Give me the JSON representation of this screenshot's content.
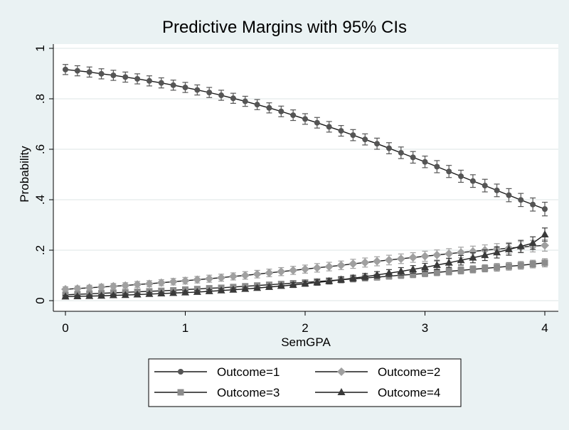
{
  "chart_data": {
    "type": "line",
    "title": "Predictive Margins with 95% CIs",
    "xlabel": "SemGPA",
    "ylabel": "Probability",
    "xlim": [
      0,
      4
    ],
    "ylim": [
      0,
      1
    ],
    "x_ticks": [
      0,
      1,
      2,
      3,
      4
    ],
    "x_tick_labels": [
      "0",
      "1",
      "2",
      "3",
      "4"
    ],
    "y_ticks": [
      0,
      0.2,
      0.4,
      0.6,
      0.8,
      1
    ],
    "y_tick_labels": [
      "0",
      ".2",
      ".4",
      ".6",
      ".8",
      "1"
    ],
    "grid": "horizontal",
    "legend_position": "bottom",
    "x_start": 0,
    "x_step": 0.1,
    "series": [
      {
        "name": "Outcome=1",
        "marker": "circle",
        "color": "#555555",
        "values": [
          0.916,
          0.911,
          0.906,
          0.899,
          0.893,
          0.886,
          0.879,
          0.871,
          0.863,
          0.854,
          0.845,
          0.835,
          0.825,
          0.814,
          0.802,
          0.79,
          0.777,
          0.764,
          0.75,
          0.735,
          0.72,
          0.705,
          0.689,
          0.673,
          0.656,
          0.639,
          0.622,
          0.604,
          0.586,
          0.568,
          0.55,
          0.531,
          0.512,
          0.493,
          0.474,
          0.456,
          0.437,
          0.418,
          0.399,
          0.381,
          0.363
        ],
        "ci": [
          0.02,
          0.02,
          0.02,
          0.02,
          0.02,
          0.02,
          0.02,
          0.02,
          0.02,
          0.02,
          0.02,
          0.02,
          0.02,
          0.02,
          0.02,
          0.02,
          0.02,
          0.02,
          0.021,
          0.021,
          0.021,
          0.021,
          0.021,
          0.021,
          0.022,
          0.022,
          0.022,
          0.022,
          0.023,
          0.023,
          0.023,
          0.024,
          0.024,
          0.024,
          0.025,
          0.025,
          0.025,
          0.026,
          0.026,
          0.026,
          0.027
        ]
      },
      {
        "name": "Outcome=2",
        "marker": "diamond",
        "color": "#a0a0a0",
        "values": [
          0.045,
          0.048,
          0.051,
          0.054,
          0.057,
          0.06,
          0.064,
          0.067,
          0.071,
          0.075,
          0.079,
          0.083,
          0.087,
          0.091,
          0.096,
          0.1,
          0.105,
          0.11,
          0.115,
          0.12,
          0.125,
          0.13,
          0.135,
          0.14,
          0.146,
          0.151,
          0.156,
          0.161,
          0.166,
          0.171,
          0.176,
          0.181,
          0.186,
          0.191,
          0.195,
          0.2,
          0.204,
          0.208,
          0.212,
          0.216,
          0.219
        ],
        "ci": [
          0.01,
          0.01,
          0.01,
          0.011,
          0.011,
          0.011,
          0.012,
          0.012,
          0.012,
          0.013,
          0.013,
          0.013,
          0.014,
          0.014,
          0.014,
          0.015,
          0.015,
          0.015,
          0.016,
          0.016,
          0.016,
          0.017,
          0.017,
          0.017,
          0.018,
          0.018,
          0.018,
          0.019,
          0.019,
          0.019,
          0.02,
          0.02,
          0.02,
          0.021,
          0.021,
          0.021,
          0.022,
          0.022,
          0.022,
          0.023,
          0.023
        ]
      },
      {
        "name": "Outcome=3",
        "marker": "square",
        "color": "#8c8c8c",
        "values": [
          0.023,
          0.025,
          0.027,
          0.029,
          0.031,
          0.033,
          0.035,
          0.037,
          0.039,
          0.041,
          0.044,
          0.046,
          0.049,
          0.051,
          0.054,
          0.057,
          0.06,
          0.063,
          0.066,
          0.069,
          0.072,
          0.076,
          0.079,
          0.083,
          0.086,
          0.09,
          0.093,
          0.097,
          0.101,
          0.104,
          0.108,
          0.112,
          0.116,
          0.12,
          0.124,
          0.128,
          0.132,
          0.136,
          0.14,
          0.145,
          0.15
        ],
        "ci": [
          0.006,
          0.006,
          0.006,
          0.006,
          0.007,
          0.007,
          0.007,
          0.007,
          0.008,
          0.008,
          0.008,
          0.008,
          0.009,
          0.009,
          0.009,
          0.009,
          0.01,
          0.01,
          0.01,
          0.01,
          0.011,
          0.011,
          0.011,
          0.011,
          0.012,
          0.012,
          0.012,
          0.012,
          0.013,
          0.013,
          0.013,
          0.013,
          0.014,
          0.014,
          0.014,
          0.014,
          0.015,
          0.015,
          0.015,
          0.015,
          0.016
        ]
      },
      {
        "name": "Outcome=4",
        "marker": "triangle",
        "color": "#3a3a3a",
        "values": [
          0.016,
          0.017,
          0.018,
          0.019,
          0.021,
          0.022,
          0.024,
          0.026,
          0.028,
          0.03,
          0.032,
          0.034,
          0.037,
          0.04,
          0.043,
          0.046,
          0.05,
          0.054,
          0.058,
          0.062,
          0.067,
          0.072,
          0.077,
          0.083,
          0.089,
          0.095,
          0.102,
          0.109,
          0.116,
          0.124,
          0.132,
          0.141,
          0.15,
          0.16,
          0.17,
          0.18,
          0.191,
          0.203,
          0.215,
          0.228,
          0.262
        ],
        "ci": [
          0.005,
          0.005,
          0.005,
          0.005,
          0.005,
          0.006,
          0.006,
          0.006,
          0.006,
          0.007,
          0.007,
          0.007,
          0.007,
          0.008,
          0.008,
          0.008,
          0.009,
          0.009,
          0.009,
          0.01,
          0.01,
          0.011,
          0.011,
          0.012,
          0.012,
          0.013,
          0.013,
          0.014,
          0.015,
          0.015,
          0.016,
          0.017,
          0.018,
          0.019,
          0.02,
          0.021,
          0.022,
          0.023,
          0.024,
          0.025,
          0.026
        ]
      }
    ]
  }
}
